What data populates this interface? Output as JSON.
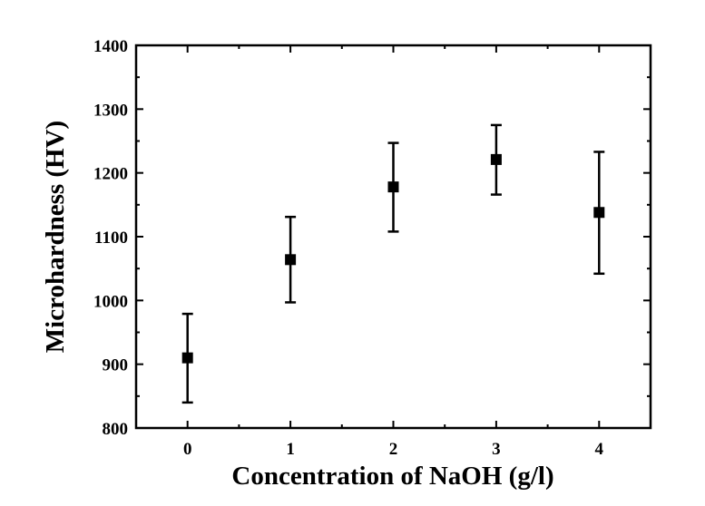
{
  "chart_data": {
    "type": "scatter",
    "title": "",
    "xlabel": "Concentration of NaOH (g/l)",
    "ylabel": "Microhardness (HV)",
    "xlim": [
      -0.5,
      4.5
    ],
    "ylim": [
      800,
      1400
    ],
    "x_ticks": [
      0,
      1,
      2,
      3,
      4
    ],
    "y_ticks": [
      800,
      900,
      1000,
      1100,
      1200,
      1300,
      1400
    ],
    "x_tick_labels": [
      "0",
      "1",
      "2",
      "3",
      "4"
    ],
    "y_tick_labels": [
      "800",
      "900",
      "1000",
      "1100",
      "1200",
      "1300",
      "1400"
    ],
    "grid": false,
    "legend": "none",
    "marker": "square",
    "color": "#000000",
    "series": [
      {
        "x": [
          0,
          1,
          2,
          3,
          4
        ],
        "y": [
          910,
          1064,
          1178,
          1221,
          1138
        ],
        "error_low": [
          840,
          997,
          1108,
          1166,
          1042
        ],
        "error_high": [
          979,
          1131,
          1247,
          1275,
          1233
        ]
      }
    ]
  }
}
